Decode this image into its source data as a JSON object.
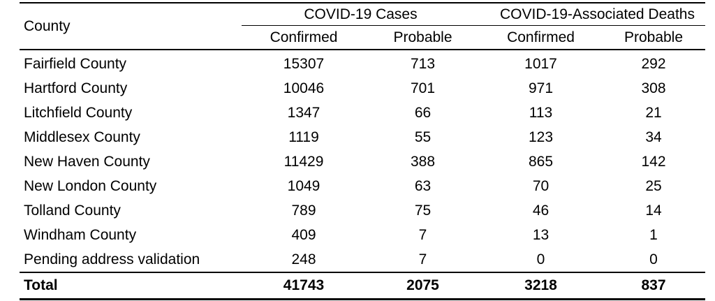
{
  "table": {
    "county_header": "County",
    "group_headers": [
      "COVID-19 Cases",
      "COVID-19-Associated Deaths"
    ],
    "sub_headers": [
      "Confirmed",
      "Probable",
      "Confirmed",
      "Probable"
    ],
    "rows": [
      {
        "county": "Fairfield County",
        "values": [
          "15307",
          "713",
          "1017",
          "292"
        ]
      },
      {
        "county": "Hartford County",
        "values": [
          "10046",
          "701",
          "971",
          "308"
        ]
      },
      {
        "county": "Litchfield County",
        "values": [
          "1347",
          "66",
          "113",
          "21"
        ]
      },
      {
        "county": "Middlesex County",
        "values": [
          "1119",
          "55",
          "123",
          "34"
        ]
      },
      {
        "county": "New Haven County",
        "values": [
          "11429",
          "388",
          "865",
          "142"
        ]
      },
      {
        "county": "New London County",
        "values": [
          "1049",
          "63",
          "70",
          "25"
        ]
      },
      {
        "county": "Tolland County",
        "values": [
          "789",
          "75",
          "46",
          "14"
        ]
      },
      {
        "county": "Windham County",
        "values": [
          "409",
          "7",
          "13",
          "1"
        ]
      },
      {
        "county": "Pending address validation",
        "values": [
          "248",
          "7",
          "0",
          "0"
        ]
      }
    ],
    "total": {
      "county": "Total",
      "values": [
        "41743",
        "2075",
        "3218",
        "837"
      ]
    }
  }
}
